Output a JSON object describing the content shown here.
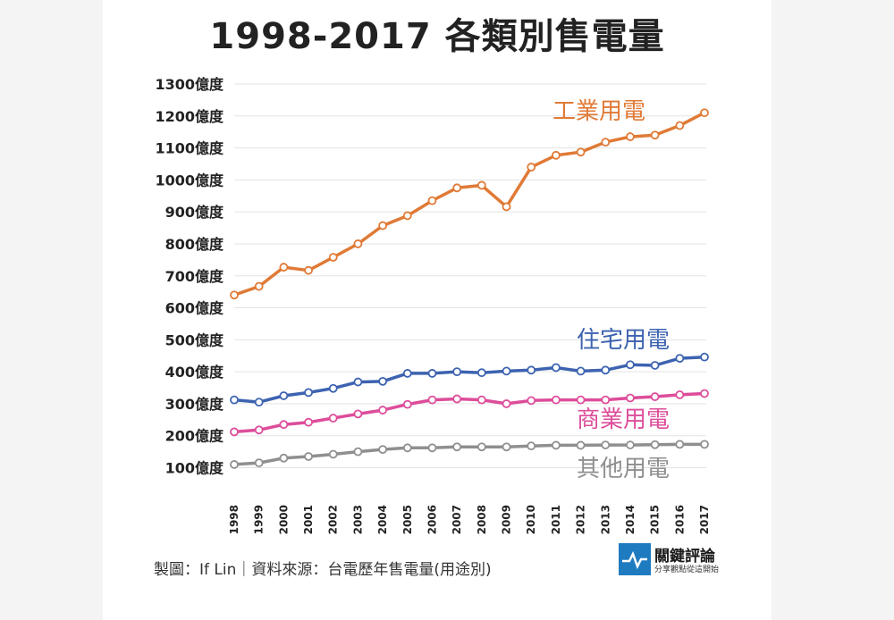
{
  "chart_data": {
    "type": "line",
    "title": "1998-2017 各類別售電量",
    "categories": [
      "1998",
      "1999",
      "2000",
      "2001",
      "2002",
      "2003",
      "2004",
      "2005",
      "2006",
      "2007",
      "2008",
      "2009",
      "2010",
      "2011",
      "2012",
      "2013",
      "2014",
      "2015",
      "2016",
      "2017"
    ],
    "y_tick_labels": [
      "1300億度",
      "1200億度",
      "1100億度",
      "1000億度",
      "900億度",
      "800億度",
      "700億度",
      "600億度",
      "500億度",
      "400億度",
      "300億度",
      "200億度",
      "100億度"
    ],
    "y_tick_values": [
      1300,
      1200,
      1100,
      1000,
      900,
      800,
      700,
      600,
      500,
      400,
      300,
      200,
      100
    ],
    "ylim": [
      30,
      1300
    ],
    "grid": true,
    "series": [
      {
        "name": "工業用電",
        "color": "#e07a36",
        "values": [
          640,
          667,
          727,
          717,
          758,
          800,
          857,
          888,
          935,
          975,
          983,
          916,
          1040,
          1077,
          1087,
          1118,
          1135,
          1140,
          1170,
          1210
        ]
      },
      {
        "name": "住宅用電",
        "color": "#3d63b0",
        "values": [
          312,
          305,
          325,
          335,
          348,
          368,
          370,
          395,
          395,
          400,
          397,
          402,
          405,
          413,
          402,
          405,
          422,
          420,
          442,
          446
        ]
      },
      {
        "name": "商業用電",
        "color": "#dd4d9a",
        "values": [
          212,
          218,
          235,
          242,
          255,
          268,
          280,
          298,
          312,
          315,
          312,
          300,
          310,
          312,
          312,
          312,
          318,
          322,
          328,
          332
        ]
      },
      {
        "name": "其他用電",
        "color": "#8f8f8f",
        "values": [
          110,
          115,
          130,
          135,
          142,
          150,
          157,
          162,
          162,
          165,
          165,
          165,
          168,
          170,
          170,
          171,
          171,
          172,
          173,
          173
        ]
      }
    ]
  },
  "footer": {
    "credit": "製圖：If Lin｜資料來源：台電歷年售電量(用途別)"
  },
  "logo": {
    "name": "關鍵評論",
    "tagline": "分享觀點從這開始"
  }
}
